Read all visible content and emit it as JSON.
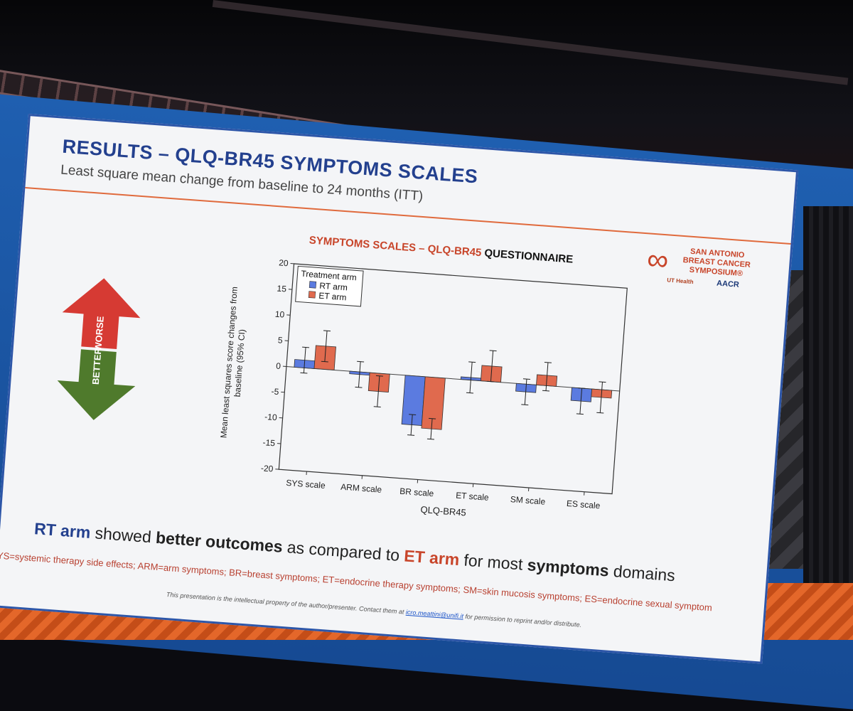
{
  "slide": {
    "title": "RESULTS – QLQ-BR45 SYMPTOMS SCALES",
    "subtitle": "Least square mean change from baseline to 24 months (ITT)"
  },
  "logo": {
    "line1": "SAN ANTONIO",
    "line2": "BREAST CANCER",
    "line3": "SYMPOSIUM®",
    "ut": "UT Health",
    "aacr": "AACR"
  },
  "arrow": {
    "up_label": "WORSE",
    "down_label": "BETTER"
  },
  "conclusion": {
    "part1": "RT arm",
    "part2": " showed ",
    "part3": "better outcomes",
    "part4": " as compared to ",
    "part5": "ET arm",
    "part6": " for most ",
    "part7": "symptoms",
    "part8": " domains"
  },
  "abbreviations": "SYS=systemic therapy side effects; ARM=arm symptoms; BR=breast symptoms; ET=endocrine therapy symptoms; SM=skin mucosis symptoms; ES=endocrine sexual symptom",
  "disclaimer": {
    "pre": "This presentation is the intellectual property of the author/presenter. Contact them at ",
    "email": "icro.meattini@unifi.it",
    "post": " for permission to reprint and/or distribute."
  },
  "colors": {
    "rt": "#5b7be0",
    "et": "#e06a4e",
    "accent": "#c8452a",
    "title": "#23408e"
  },
  "chart_data": {
    "type": "bar",
    "title_a": "SYMPTOMS SCALES – QLQ-BR45",
    "title_b": " QUESTIONNAIRE",
    "xlabel": "QLQ-BR45",
    "ylabel_line1": "Mean least squares score changes from",
    "ylabel_line2": "baseline (95% CI)",
    "ylim": [
      -20,
      20
    ],
    "yticks": [
      20,
      15,
      10,
      5,
      0,
      -5,
      -10,
      -15,
      -20
    ],
    "legend_title": "Treatment arm",
    "legend_placement": "top-left",
    "categories": [
      "SYS scale",
      "ARM scale",
      "BR scale",
      "ET scale",
      "SM scale",
      "ES scale"
    ],
    "series": [
      {
        "name": "RT arm",
        "color": "#5b7be0",
        "values": [
          1.5,
          -0.5,
          -9.5,
          0.5,
          -1.5,
          -2.5
        ],
        "ci_low": [
          -1.0,
          -3.0,
          -11.5,
          -2.5,
          -4.0,
          -5.0
        ],
        "ci_high": [
          4.0,
          2.0,
          -7.5,
          3.5,
          1.0,
          0.0
        ]
      },
      {
        "name": "ET arm",
        "color": "#e06a4e",
        "values": [
          4.5,
          -3.5,
          -10.0,
          3.0,
          2.0,
          -1.5
        ],
        "ci_low": [
          1.5,
          -6.5,
          -12.0,
          0.0,
          -1.0,
          -4.5
        ],
        "ci_high": [
          7.5,
          -0.5,
          -8.0,
          6.0,
          4.5,
          1.5
        ]
      }
    ]
  }
}
